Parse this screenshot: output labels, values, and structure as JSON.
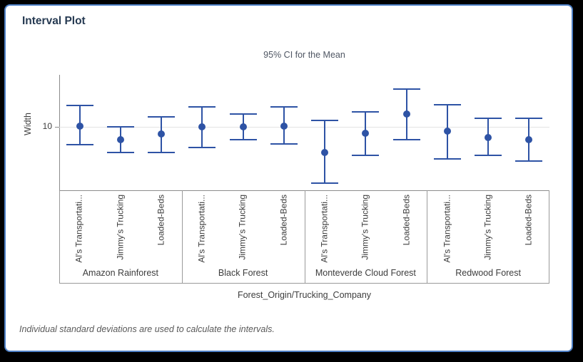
{
  "title": "Interval Plot",
  "chart_data": {
    "type": "interval",
    "subtitle": "95% CI for the Mean",
    "ylabel": "Width",
    "xlabel": "Forest_Origin/Trucking_Company",
    "footnote": "Individual standard deviations are used to calculate the intervals.",
    "ylim": [
      5.05,
      14.1
    ],
    "yticks": [
      10
    ],
    "grid": "horizontal gridline at labeled y tick only",
    "legend": "none",
    "groups": [
      "Amazon Rainforest",
      "Black Forest",
      "Monteverde Cloud Forest",
      "Redwood Forest"
    ],
    "categories_per_group": [
      "Al's Transportati...",
      "Jimmy's Trucking",
      "Loaded-Beds"
    ],
    "series": [
      {
        "group": "Amazon Rainforest",
        "company": "Al's Transportati...",
        "mean": 10.05,
        "ci_low": 8.6,
        "ci_high": 11.7
      },
      {
        "group": "Amazon Rainforest",
        "company": "Jimmy's Trucking",
        "mean": 9.0,
        "ci_low": 8.0,
        "ci_high": 10.0
      },
      {
        "group": "Amazon Rainforest",
        "company": "Loaded-Beds",
        "mean": 9.45,
        "ci_low": 8.0,
        "ci_high": 10.8
      },
      {
        "group": "Black Forest",
        "company": "Al's Transportati...",
        "mean": 10.0,
        "ci_low": 8.4,
        "ci_high": 11.6
      },
      {
        "group": "Black Forest",
        "company": "Jimmy's Trucking",
        "mean": 10.0,
        "ci_low": 9.0,
        "ci_high": 11.0
      },
      {
        "group": "Black Forest",
        "company": "Loaded-Beds",
        "mean": 10.1,
        "ci_low": 8.7,
        "ci_high": 11.6
      },
      {
        "group": "Monteverde Cloud Forest",
        "company": "Al's Transportati...",
        "mean": 8.0,
        "ci_low": 5.6,
        "ci_high": 10.5
      },
      {
        "group": "Monteverde Cloud Forest",
        "company": "Jimmy's Trucking",
        "mean": 9.5,
        "ci_low": 7.8,
        "ci_high": 11.2
      },
      {
        "group": "Monteverde Cloud Forest",
        "company": "Loaded-Beds",
        "mean": 11.05,
        "ci_low": 9.0,
        "ci_high": 13.0
      },
      {
        "group": "Redwood Forest",
        "company": "Al's Transportati...",
        "mean": 9.7,
        "ci_low": 7.5,
        "ci_high": 11.75
      },
      {
        "group": "Redwood Forest",
        "company": "Jimmy's Trucking",
        "mean": 9.2,
        "ci_low": 7.8,
        "ci_high": 10.7
      },
      {
        "group": "Redwood Forest",
        "company": "Loaded-Beds",
        "mean": 9.0,
        "ci_low": 7.35,
        "ci_high": 10.7
      }
    ],
    "colors": {
      "interval": "#2e53a5",
      "axis_line": "#8c8c8c",
      "table_line": "#9a9a9a",
      "gridline": "#e4e4e4",
      "card_border": "#4e80c6",
      "title_text": "#263a52"
    }
  }
}
